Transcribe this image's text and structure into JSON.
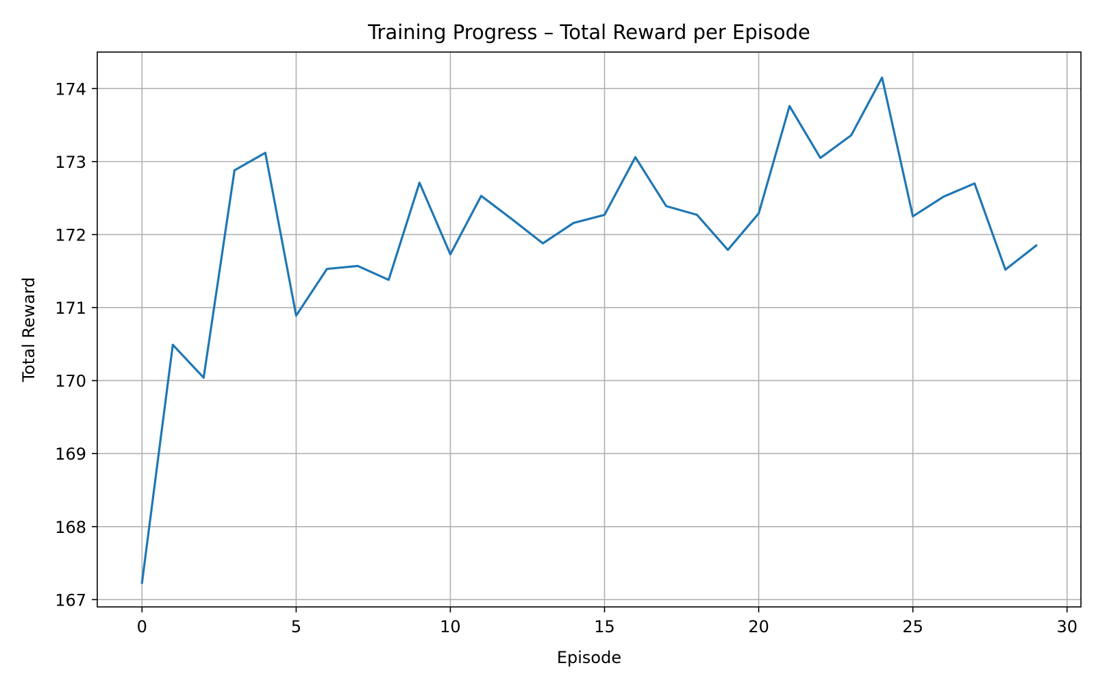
{
  "chart_data": {
    "type": "line",
    "title": "Training Progress – Total Reward per Episode",
    "xlabel": "Episode",
    "ylabel": "Total Reward",
    "xlim": [
      -1.45,
      30.45
    ],
    "ylim": [
      166.9,
      174.5
    ],
    "x_ticks": [
      0,
      5,
      10,
      15,
      20,
      25,
      30
    ],
    "y_ticks": [
      167,
      168,
      169,
      170,
      171,
      172,
      173,
      174
    ],
    "grid": true,
    "series": [
      {
        "color": "#1f77b4",
        "x": [
          0,
          1,
          2,
          3,
          4,
          5,
          6,
          7,
          8,
          9,
          10,
          11,
          12,
          13,
          14,
          15,
          16,
          17,
          18,
          19,
          20,
          21,
          22,
          23,
          24,
          25,
          26,
          27,
          28,
          29
        ],
        "values": [
          167.23,
          170.49,
          170.04,
          172.88,
          173.12,
          170.89,
          171.53,
          171.57,
          171.38,
          172.71,
          171.73,
          172.53,
          172.21,
          171.88,
          172.16,
          172.27,
          173.06,
          172.39,
          172.27,
          171.79,
          172.29,
          173.76,
          173.05,
          173.36,
          174.15,
          172.25,
          172.52,
          172.7,
          171.52,
          171.85
        ]
      }
    ]
  }
}
